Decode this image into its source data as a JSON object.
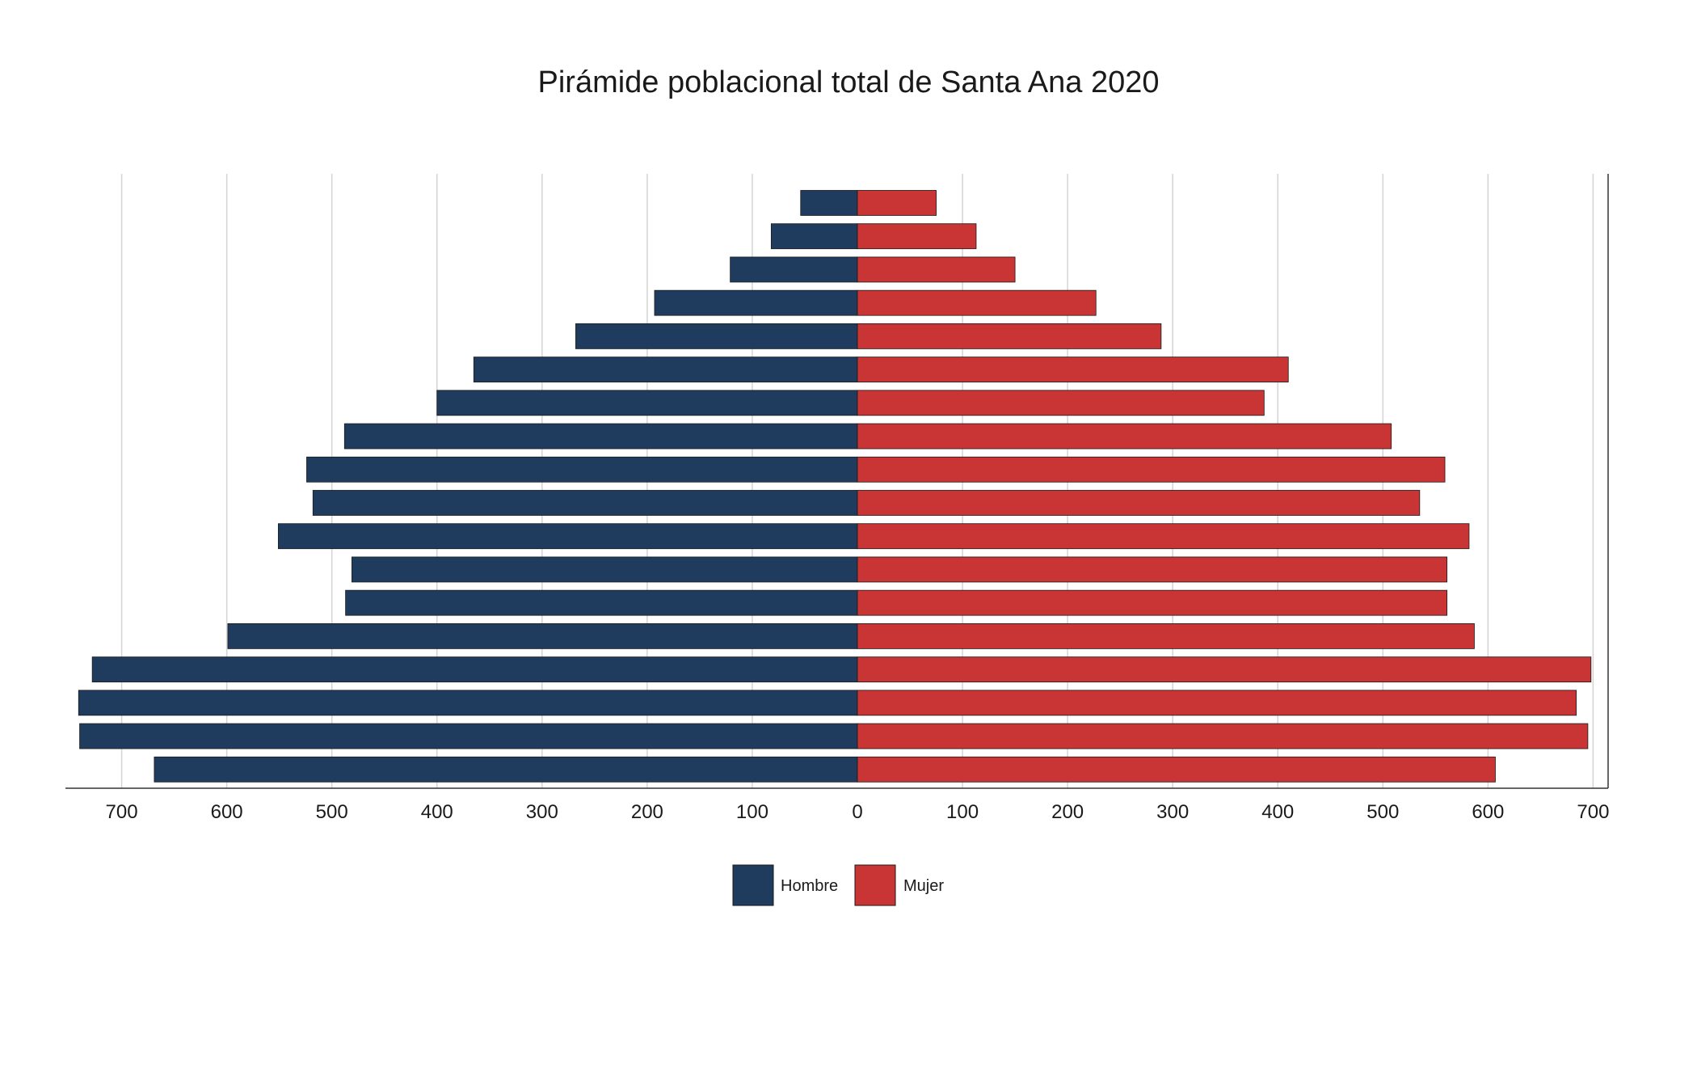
{
  "chart_data": {
    "type": "bar",
    "orientation": "horizontal",
    "layout": "population-pyramid",
    "title": "Pirámide poblacional total de Santa Ana 2020",
    "xlabel": "",
    "ylabel": "",
    "xlim": [
      -750,
      712
    ],
    "x_ticks": [
      -700,
      -600,
      -500,
      -400,
      -300,
      -200,
      -100,
      0,
      100,
      200,
      300,
      400,
      500,
      600,
      700
    ],
    "x_tick_labels": [
      "700",
      "600",
      "500",
      "400",
      "300",
      "200",
      "100",
      "0",
      "100",
      "200",
      "300",
      "400",
      "500",
      "600",
      "700"
    ],
    "grid": "vertical",
    "legend_position": "bottom-center",
    "series": [
      {
        "name": "Hombre",
        "color": "#1f3c5e",
        "values_top_to_bottom": [
          54,
          82,
          121,
          193,
          268,
          365,
          400,
          488,
          524,
          518,
          551,
          481,
          487,
          599,
          728,
          741,
          740,
          669
        ]
      },
      {
        "name": "Mujer",
        "color": "#c93434",
        "values_top_to_bottom": [
          75,
          113,
          150,
          227,
          289,
          410,
          387,
          508,
          559,
          535,
          582,
          561,
          561,
          587,
          698,
          684,
          695,
          607
        ]
      }
    ]
  }
}
